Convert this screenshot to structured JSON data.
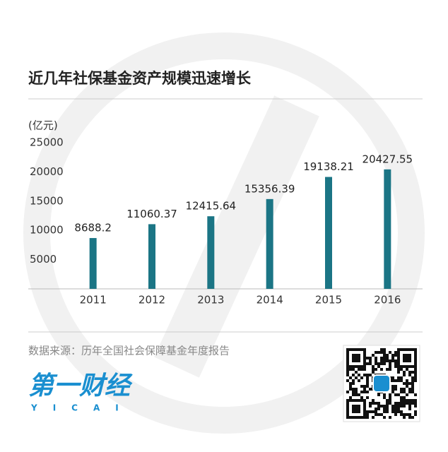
{
  "chart_data": {
    "type": "bar",
    "title": "近几年社保基金资产规模迅速增长",
    "y_axis_label": "(亿元)",
    "categories": [
      "2011",
      "2012",
      "2013",
      "2014",
      "2015",
      "2016"
    ],
    "values": [
      8688.2,
      11060.37,
      12415.64,
      15356.39,
      19138.21,
      20427.55
    ],
    "color": "#1b7585",
    "ylim": [
      0,
      25000
    ],
    "yticks": [
      5000,
      10000,
      15000,
      20000,
      25000
    ],
    "grid": false
  },
  "footer": {
    "source": "数据来源：历年全国社会保障基金年度报告",
    "logo": "第一财经",
    "logo_sub": "YICAI"
  }
}
